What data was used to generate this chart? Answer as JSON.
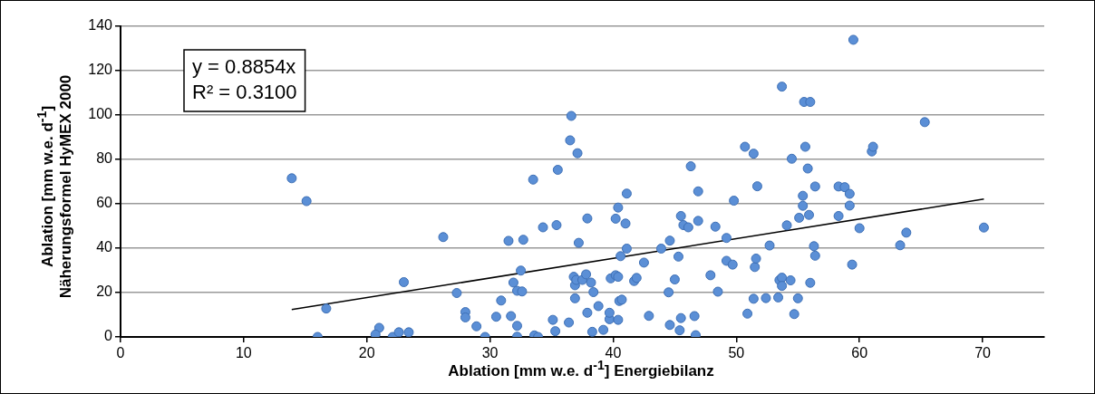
{
  "chart_data": {
    "type": "scatter",
    "xlabel": "Ablation [mm w.e. d$^{-1}$] Energiebilanz",
    "ylabel": "Ablation [mm w.e. d$^{-1}$]\nNäherungsformel HyMEX 2000",
    "annotations": [
      "y = 0.8854x",
      "R² = 0.3100"
    ],
    "xlim": [
      0,
      75
    ],
    "xticks": [
      0,
      10,
      20,
      30,
      40,
      50,
      60,
      70
    ],
    "ylim": [
      0,
      140
    ],
    "yticks": [
      0,
      20,
      40,
      60,
      80,
      100,
      120,
      140
    ],
    "grid": "y",
    "legend": false,
    "series": [
      {
        "color": "#5b8fd6",
        "marker": "circle",
        "x": [
          13.9,
          15.1,
          16.7,
          16.0,
          21.0,
          20.7,
          22.1,
          22.6,
          23.4,
          23.0,
          26.2,
          27.3,
          28.0,
          28.0,
          28.9,
          29.6,
          30.5,
          30.9,
          31.5,
          31.7,
          31.9,
          32.2,
          32.2,
          32.2,
          32.5,
          32.6,
          32.7,
          33.5,
          33.6,
          33.9,
          34.3,
          35.1,
          35.3,
          35.4,
          35.5,
          36.4,
          36.5,
          36.6,
          36.8,
          36.9,
          37.0,
          36.9,
          37.1,
          37.2,
          37.5,
          37.8,
          37.9,
          37.9,
          38.2,
          38.3,
          38.4,
          38.8,
          39.2,
          39.7,
          39.7,
          39.8,
          40.2,
          40.2,
          40.4,
          40.4,
          40.4,
          40.5,
          40.7,
          40.6,
          41.0,
          41.1,
          41.1,
          41.7,
          41.9,
          42.5,
          42.9,
          43.9,
          44.5,
          44.6,
          44.6,
          45.0,
          45.3,
          45.4,
          45.5,
          45.5,
          45.7,
          46.1,
          46.3,
          46.6,
          46.7,
          46.9,
          46.9,
          47.9,
          48.3,
          48.5,
          49.2,
          49.2,
          49.7,
          49.8,
          50.7,
          50.9,
          51.4,
          51.4,
          51.5,
          51.6,
          51.7,
          52.4,
          52.7,
          53.4,
          53.5,
          53.7,
          53.7,
          53.7,
          54.1,
          54.4,
          54.5,
          54.7,
          55.0,
          55.1,
          55.4,
          55.4,
          55.5,
          55.6,
          55.8,
          55.9,
          56.0,
          56.0,
          56.3,
          56.4,
          56.4,
          58.3,
          58.3,
          58.8,
          59.2,
          59.2,
          59.4,
          59.5,
          60.0,
          61.0,
          61.1,
          63.3,
          63.8,
          65.3,
          70.1
        ],
        "values": [
          71.5,
          61.2,
          12.8,
          0,
          4.1,
          1.1,
          0,
          2.1,
          2.1,
          24.7,
          45.0,
          19.8,
          11.2,
          8.8,
          4.8,
          0,
          9.1,
          16.4,
          43.3,
          9.4,
          24.5,
          5.0,
          0.1,
          20.8,
          29.9,
          20.5,
          43.8,
          70.9,
          0.7,
          0,
          49.4,
          7.7,
          2.6,
          50.4,
          75.3,
          6.5,
          88.6,
          99.6,
          27.1,
          23.3,
          25.7,
          17.4,
          82.8,
          42.4,
          25.7,
          28.2,
          10.9,
          53.4,
          24.5,
          2.3,
          20.2,
          13.9,
          3.2,
          8.0,
          10.9,
          26.4,
          53.3,
          27.8,
          58.3,
          27.1,
          7.7,
          16.2,
          16.8,
          36.4,
          51.1,
          39.8,
          64.6,
          25.2,
          26.6,
          33.5,
          9.5,
          39.8,
          20.1,
          43.4,
          5.4,
          25.9,
          36.2,
          3.0,
          8.5,
          54.5,
          50.4,
          49.4,
          76.9,
          9.4,
          0.8,
          52.3,
          65.6,
          27.8,
          49.7,
          20.4,
          44.6,
          34.3,
          32.6,
          61.4,
          85.7,
          10.5,
          17.2,
          82.6,
          31.5,
          35.3,
          67.9,
          17.5,
          41.2,
          17.8,
          25.6,
          26.7,
          23.0,
          112.8,
          50.3,
          25.5,
          80.3,
          10.3,
          17.4,
          53.7,
          59.1,
          63.6,
          105.9,
          85.7,
          75.9,
          55.0,
          105.9,
          24.4,
          40.9,
          67.8,
          36.6,
          67.8,
          54.5,
          67.5,
          64.5,
          59.2,
          32.6,
          133.9,
          49.0,
          83.6,
          85.7,
          41.3,
          47.0,
          96.8,
          49.3
        ]
      },
      {
        "type": "line",
        "color": "#000000",
        "marker": "none",
        "x": [
          13.9,
          70.1
        ],
        "values": [
          12.3,
          62.1
        ]
      }
    ]
  }
}
